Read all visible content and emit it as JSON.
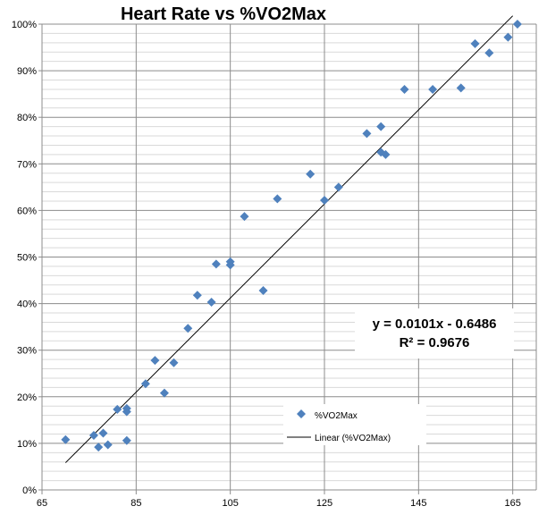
{
  "chart_data": {
    "type": "scatter",
    "title": "Heart Rate vs %VO2Max",
    "xlim": [
      65,
      170
    ],
    "ylim": [
      0,
      1
    ],
    "x_ticks": [
      65,
      85,
      105,
      125,
      145,
      165
    ],
    "y_ticks": [
      0,
      0.1,
      0.2,
      0.3,
      0.4,
      0.5,
      0.6,
      0.7,
      0.8,
      0.9,
      1.0
    ],
    "x_tick_labels": [
      "65",
      "85",
      "105",
      "125",
      "145",
      "165"
    ],
    "y_tick_labels": [
      "0%",
      "10%",
      "20%",
      "30%",
      "40%",
      "50%",
      "60%",
      "70%",
      "80%",
      "90%",
      "100%"
    ],
    "grid": {
      "x_major": true,
      "y_major": true,
      "y_minor": true,
      "y_minor_step": 0.02
    },
    "legend_position": "lower-right inside plot",
    "series": [
      {
        "name": "%VO2Max",
        "marker": "diamond",
        "color": "#4f81bd",
        "points": [
          [
            70,
            0.108
          ],
          [
            76,
            0.117
          ],
          [
            77,
            0.092
          ],
          [
            78,
            0.122
          ],
          [
            79,
            0.097
          ],
          [
            81,
            0.173
          ],
          [
            83,
            0.175
          ],
          [
            83,
            0.168
          ],
          [
            83,
            0.106
          ],
          [
            87,
            0.228
          ],
          [
            89,
            0.278
          ],
          [
            91,
            0.208
          ],
          [
            93,
            0.273
          ],
          [
            96,
            0.347
          ],
          [
            98,
            0.418
          ],
          [
            101,
            0.403
          ],
          [
            102,
            0.485
          ],
          [
            105,
            0.49
          ],
          [
            105,
            0.483
          ],
          [
            108,
            0.587
          ],
          [
            112,
            0.428
          ],
          [
            115,
            0.625
          ],
          [
            122,
            0.678
          ],
          [
            125,
            0.622
          ],
          [
            128,
            0.65
          ],
          [
            134,
            0.765
          ],
          [
            137,
            0.78
          ],
          [
            137,
            0.725
          ],
          [
            138,
            0.72
          ],
          [
            142,
            0.86
          ],
          [
            148,
            0.86
          ],
          [
            154,
            0.863
          ],
          [
            157,
            0.958
          ],
          [
            160,
            0.938
          ],
          [
            164,
            0.972
          ],
          [
            166,
            1.0
          ]
        ]
      }
    ],
    "trendline": {
      "name": "Linear (%VO2Max)",
      "slope": 0.0101,
      "intercept": -0.6486,
      "x_range": [
        70,
        165
      ],
      "color": "#000000",
      "equation_label": "y = 0.0101x - 0.6486",
      "r2_label": "R² = 0.9676"
    },
    "legend": [
      {
        "label": "%VO2Max",
        "kind": "marker"
      },
      {
        "label": "Linear (%VO2Max)",
        "kind": "line"
      }
    ]
  }
}
